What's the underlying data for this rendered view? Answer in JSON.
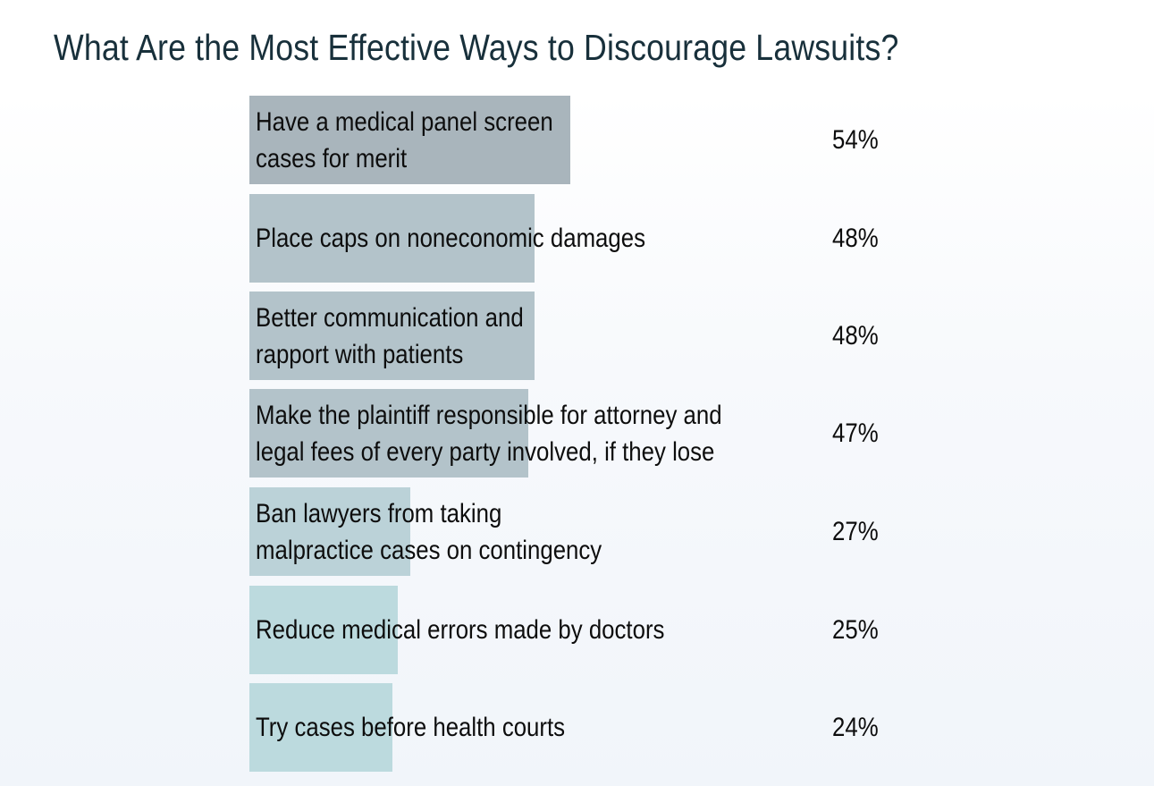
{
  "chart_data": {
    "type": "bar",
    "orientation": "horizontal",
    "title": "What Are the Most Effective Ways to Discourage Lawsuits?",
    "xlabel": "",
    "ylabel": "",
    "xlim": [
      0,
      100
    ],
    "grid": false,
    "legend": null,
    "categories": [
      "Have a medical panel screen cases for merit",
      "Place caps on noneconomic damages",
      "Better communication and rapport with patients",
      "Make the plaintiff responsible for attorney and legal fees of every party involved, if they lose",
      "Ban lawyers from taking malpractice cases on contingency",
      "Reduce medical errors made by doctors",
      "Try cases before health courts"
    ],
    "values": [
      54,
      48,
      48,
      47,
      27,
      25,
      24
    ],
    "value_labels": [
      "54%",
      "48%",
      "48%",
      "47%",
      "27%",
      "25%",
      "24%"
    ]
  },
  "header": {
    "title": "What Are the Most Effective Ways to Discourage Lawsuits?"
  },
  "rows": [
    {
      "label": "Have a medical panel screen\ncases for merit",
      "pct": "54%",
      "value": 54,
      "color": "#a9b5bc"
    },
    {
      "label": "Place caps on noneconomic damages",
      "pct": "48%",
      "value": 48,
      "color": "#b3c3ca"
    },
    {
      "label": "Better communication and\nrapport with patients",
      "pct": "48%",
      "value": 48,
      "color": "#b3c3ca"
    },
    {
      "label": "Make the plaintiff responsible for attorney and\nlegal fees of every party involved, if they lose",
      "pct": "47%",
      "value": 47,
      "color": "#b3c3ca"
    },
    {
      "label": "Ban lawyers from taking\nmalpractice cases on contingency",
      "pct": "27%",
      "value": 27,
      "color": "#bbd2d8"
    },
    {
      "label": "Reduce medical errors made by doctors",
      "pct": "25%",
      "value": 25,
      "color": "#bcdade"
    },
    {
      "label": "Try cases before health courts",
      "pct": "24%",
      "value": 24,
      "color": "#bcdade"
    }
  ],
  "colors": {
    "title": "#18303b",
    "text": "#0d0d0d",
    "background_top": "#ffffff",
    "background_bottom": "#f1f5fa"
  }
}
